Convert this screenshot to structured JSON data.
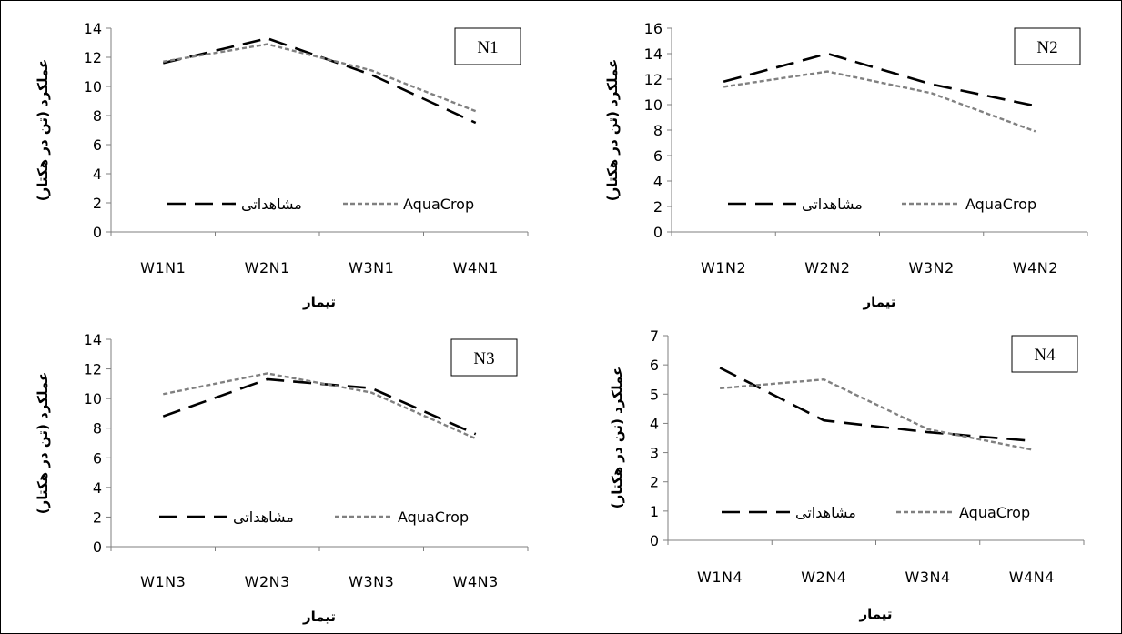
{
  "chart_data": [
    {
      "type": "line",
      "panel_label": "N1",
      "categories": [
        "W1N1",
        "W2N1",
        "W3N1",
        "W4N1"
      ],
      "ylabel": "عملکرد (تن در هکتار)",
      "xlabel": "تیمار",
      "ylim": [
        0,
        14
      ],
      "yticks": [
        0,
        2,
        4,
        6,
        8,
        10,
        12,
        14
      ],
      "legend_position": "bottom",
      "grid": false,
      "series": [
        {
          "name": "مشاهداتی",
          "style": "long-dash",
          "color": "#000000",
          "values": [
            11.6,
            13.3,
            10.8,
            7.5
          ]
        },
        {
          "name": "AquaCrop",
          "style": "short-dash",
          "color": "#808080",
          "values": [
            11.7,
            12.9,
            11.1,
            8.3
          ]
        }
      ]
    },
    {
      "type": "line",
      "panel_label": "N2",
      "categories": [
        "W1N2",
        "W2N2",
        "W3N2",
        "W4N2"
      ],
      "ylabel": "عملکرد (تن در هکتار)",
      "xlabel": "تیمار",
      "ylim": [
        0,
        16
      ],
      "yticks": [
        0,
        2,
        4,
        6,
        8,
        10,
        12,
        14,
        16
      ],
      "legend_position": "bottom",
      "grid": false,
      "series": [
        {
          "name": "مشاهداتی",
          "style": "long-dash",
          "color": "#000000",
          "values": [
            11.8,
            14.0,
            11.6,
            9.9
          ]
        },
        {
          "name": "AquaCrop",
          "style": "short-dash",
          "color": "#808080",
          "values": [
            11.4,
            12.6,
            10.9,
            7.9
          ]
        }
      ]
    },
    {
      "type": "line",
      "panel_label": "N3",
      "categories": [
        "W1N3",
        "W2N3",
        "W3N3",
        "W4N3"
      ],
      "ylabel": "عملکرد (تن در هکتار)",
      "xlabel": "تیمار",
      "ylim": [
        0,
        14
      ],
      "yticks": [
        0,
        2,
        4,
        6,
        8,
        10,
        12,
        14
      ],
      "legend_position": "bottom",
      "grid": false,
      "series": [
        {
          "name": "مشاهداتی",
          "style": "long-dash",
          "color": "#000000",
          "values": [
            8.8,
            11.3,
            10.7,
            7.6
          ]
        },
        {
          "name": "AquaCrop",
          "style": "short-dash",
          "color": "#808080",
          "values": [
            10.3,
            11.7,
            10.4,
            7.3
          ]
        }
      ]
    },
    {
      "type": "line",
      "panel_label": "N4",
      "categories": [
        "W1N4",
        "W2N4",
        "W3N4",
        "W4N4"
      ],
      "ylabel": "عملکرد (تن در هکتار)",
      "xlabel": "تیمار",
      "ylim": [
        0,
        7
      ],
      "yticks": [
        0,
        1,
        2,
        3,
        4,
        5,
        6,
        7
      ],
      "legend_position": "bottom",
      "grid": false,
      "series": [
        {
          "name": "مشاهداتی",
          "style": "long-dash",
          "color": "#000000",
          "values": [
            5.9,
            4.1,
            3.7,
            3.4
          ]
        },
        {
          "name": "AquaCrop",
          "style": "short-dash",
          "color": "#808080",
          "values": [
            5.2,
            5.5,
            3.8,
            3.1
          ]
        }
      ]
    }
  ]
}
